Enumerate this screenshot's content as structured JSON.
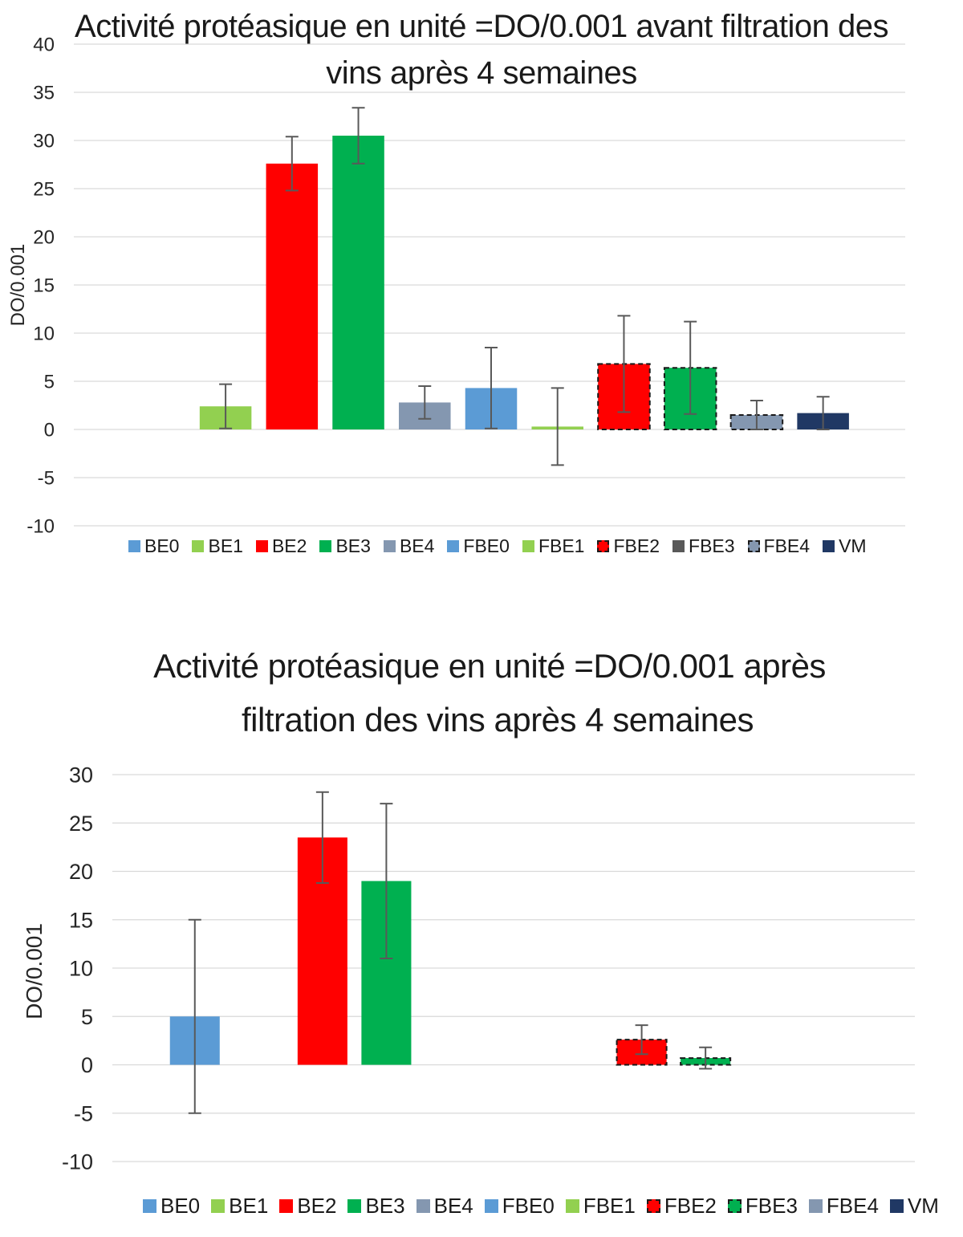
{
  "chart_data": [
    {
      "type": "bar",
      "title": "Activité protéasique en unité =DO/0.001 avant filtration des vins après 4 semaines",
      "title_lines": [
        "Activité protéasique en unité =DO/0.001 avant filtration des",
        "vins après 4 semaines"
      ],
      "xlabel": "",
      "ylabel": "DO/0.001",
      "ylim": [
        -10,
        40
      ],
      "yticks": [
        40,
        35,
        30,
        25,
        20,
        15,
        10,
        5,
        0,
        -5,
        -10
      ],
      "grid": true,
      "legend_position": "bottom",
      "series": [
        {
          "name": "BE0",
          "color": "#5b9bd5",
          "style": "solid",
          "value": null,
          "error": null
        },
        {
          "name": "BE1",
          "color": "#92d050",
          "style": "solid",
          "value": 2.4,
          "error": 2.3
        },
        {
          "name": "BE2",
          "color": "#ff0000",
          "style": "solid",
          "value": 27.6,
          "error": 2.8
        },
        {
          "name": "BE3",
          "color": "#00b050",
          "style": "solid",
          "value": 30.5,
          "error": 2.9
        },
        {
          "name": "BE4",
          "color": "#8497b0",
          "style": "solid",
          "value": 2.8,
          "error": 1.7
        },
        {
          "name": "FBE0",
          "color": "#5b9bd5",
          "style": "solid",
          "value": 4.3,
          "error": 4.2
        },
        {
          "name": "FBE1",
          "color": "#92d050",
          "style": "solid",
          "value": 0.3,
          "error": 4.0
        },
        {
          "name": "FBE2",
          "color": "#ff0000",
          "style": "dashed",
          "value": 6.8,
          "error": 5.0
        },
        {
          "name": "FBE3",
          "color": "#00b050",
          "style": "dashed",
          "value": 6.4,
          "error": 4.8
        },
        {
          "name": "FBE4",
          "color": "#8497b0",
          "style": "dashed",
          "value": 1.5,
          "error": 1.5
        },
        {
          "name": "VM",
          "color": "#203864",
          "style": "solid",
          "value": 1.7,
          "error": 1.7
        }
      ],
      "legend_colors": {
        "FBE3": "#595959"
      }
    },
    {
      "type": "bar",
      "title": "Activité protéasique en unité =DO/0.001 après filtration des vins après 4 semaines",
      "title_lines": [
        "Activité protéasique en unité =DO/0.001 après",
        "filtration des vins après 4 semaines"
      ],
      "xlabel": "",
      "ylabel": "DO/0.001",
      "ylim": [
        -10,
        30
      ],
      "yticks": [
        30,
        25,
        20,
        15,
        10,
        5,
        0,
        -5,
        -10
      ],
      "grid": true,
      "legend_position": "bottom",
      "series": [
        {
          "name": "BE0",
          "color": "#5b9bd5",
          "style": "solid",
          "value": 5.0,
          "error": 10.0
        },
        {
          "name": "BE1",
          "color": "#92d050",
          "style": "solid",
          "value": null,
          "error": null
        },
        {
          "name": "BE2",
          "color": "#ff0000",
          "style": "solid",
          "value": 23.5,
          "error": 4.7
        },
        {
          "name": "BE3",
          "color": "#00b050",
          "style": "solid",
          "value": 19.0,
          "error": 8.0
        },
        {
          "name": "BE4",
          "color": "#8497b0",
          "style": "solid",
          "value": null,
          "error": null
        },
        {
          "name": "FBE0",
          "color": "#5b9bd5",
          "style": "solid",
          "value": null,
          "error": null
        },
        {
          "name": "FBE1",
          "color": "#92d050",
          "style": "solid",
          "value": null,
          "error": null
        },
        {
          "name": "FBE2",
          "color": "#ff0000",
          "style": "dashed",
          "value": 2.6,
          "error": 1.5
        },
        {
          "name": "FBE3",
          "color": "#00b050",
          "style": "dashed",
          "value": 0.7,
          "error": 1.1
        },
        {
          "name": "FBE4",
          "color": "#8497b0",
          "style": "solid",
          "value": null,
          "error": null
        },
        {
          "name": "VM",
          "color": "#203864",
          "style": "solid",
          "value": null,
          "error": null
        }
      ],
      "legend_colors": {}
    }
  ]
}
